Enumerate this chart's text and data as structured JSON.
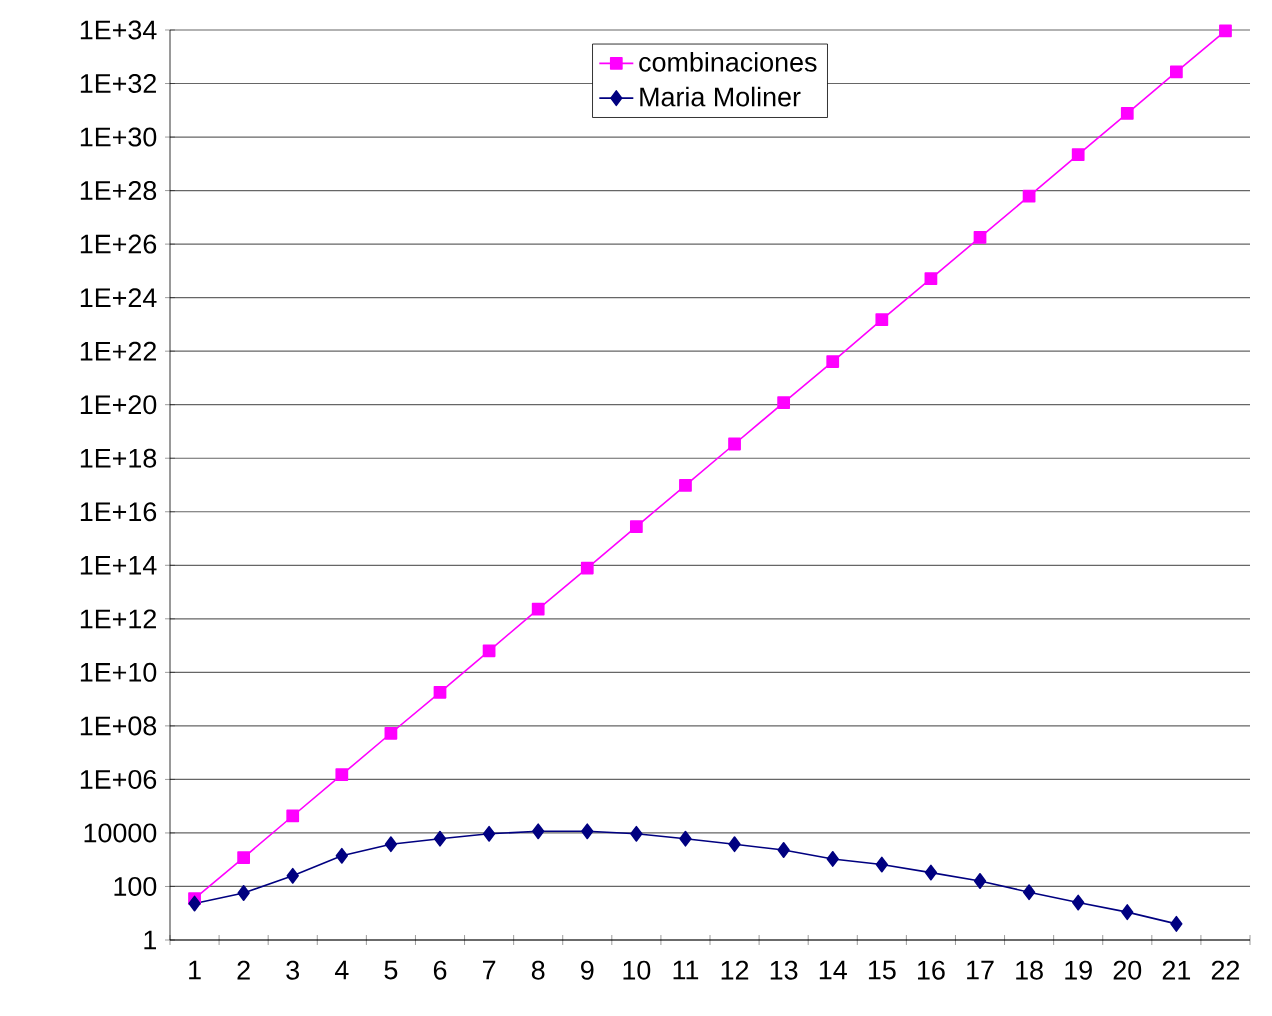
{
  "chart_data": {
    "type": "line",
    "categories": [
      "1",
      "2",
      "3",
      "4",
      "5",
      "6",
      "7",
      "8",
      "9",
      "10",
      "11",
      "12",
      "13",
      "14",
      "15",
      "16",
      "17",
      "18",
      "19",
      "20",
      "21",
      "22"
    ],
    "series": [
      {
        "name": "combinaciones",
        "color": "#ff00ff",
        "marker": "square",
        "values": [
          35,
          1200,
          43000,
          1500000.0,
          53000000.0,
          1800000000.0,
          64000000000.0,
          2300000000000.0,
          79000000000000.0,
          2800000000000000.0,
          9.7e+16,
          3.4e+18,
          1.2e+20,
          4.1e+21,
          1.5e+23,
          5.1e+24,
          1.8e+26,
          6.2e+27,
          2.2e+29,
          7.6e+30,
          2.7e+32,
          9.3e+33
        ]
      },
      {
        "name": "Maria Moliner",
        "color": "#000080",
        "marker": "diamond",
        "values": [
          23,
          57,
          250,
          1400,
          3800,
          6100,
          9300,
          11500,
          11500,
          9300,
          6100,
          3800,
          2300,
          1070,
          660,
          330,
          160,
          61,
          25,
          11,
          4,
          null
        ]
      }
    ],
    "log": "y",
    "grid": "y",
    "legend": "top",
    "ylim": [
      1,
      1e+34
    ],
    "yticks": [
      1,
      100,
      10000,
      {
        "value": 1000000.0,
        "label": "1E+06"
      },
      {
        "value": 100000000.0,
        "label": "1E+08"
      },
      {
        "value": 10000000000.0,
        "label": "1E+10"
      },
      {
        "value": 1000000000000.0,
        "label": "1E+12"
      },
      {
        "value": 100000000000000.0,
        "label": "1E+14"
      },
      {
        "value": 1e+16,
        "label": "1E+16"
      },
      {
        "value": 1e+18,
        "label": "1E+18"
      },
      {
        "value": 1e+20,
        "label": "1E+20"
      },
      {
        "value": 1e+22,
        "label": "1E+22"
      },
      {
        "value": 1e+24,
        "label": "1E+24"
      },
      {
        "value": 1e+26,
        "label": "1E+26"
      },
      {
        "value": 1e+28,
        "label": "1E+28"
      },
      {
        "value": 1e+30,
        "label": "1E+30"
      },
      {
        "value": 1e+32,
        "label": "1E+32"
      },
      {
        "value": 1e+34,
        "label": "1E+34"
      }
    ]
  }
}
